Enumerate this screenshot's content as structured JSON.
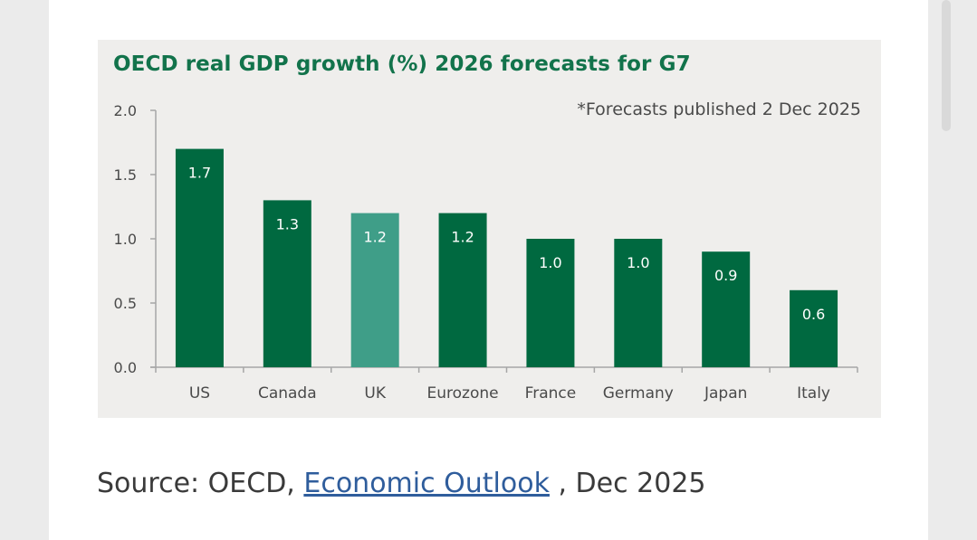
{
  "chart_data": {
    "type": "bar",
    "title": "OECD real GDP growth (%) 2026 forecasts for G7",
    "note": "*Forecasts  published 2 Dec 2025",
    "categories": [
      "US",
      "Canada",
      "UK",
      "Eurozone",
      "France",
      "Germany",
      "Japan",
      "Italy"
    ],
    "values": [
      1.7,
      1.3,
      1.2,
      1.2,
      1.0,
      1.0,
      0.9,
      0.6
    ],
    "value_labels": [
      "1.7",
      "1.3",
      "1.2",
      "1.2",
      "1.0",
      "1.0",
      "0.9",
      "0.6"
    ],
    "highlight_category": "UK",
    "ylim": [
      0,
      2.0
    ],
    "yticks": [
      "0.0",
      "0.5",
      "1.0",
      "1.5",
      "2.0"
    ],
    "ytick_values": [
      0,
      0.5,
      1.0,
      1.5,
      2.0
    ],
    "xlabel": "",
    "ylabel": "",
    "grid": false,
    "colors": {
      "bar": "#006940",
      "highlight": "#3f9e88",
      "title": "#12734b"
    }
  },
  "source": {
    "prefix": "Source: OECD, ",
    "link_text": "Economic Outlook",
    "suffix": " , Dec 2025"
  }
}
